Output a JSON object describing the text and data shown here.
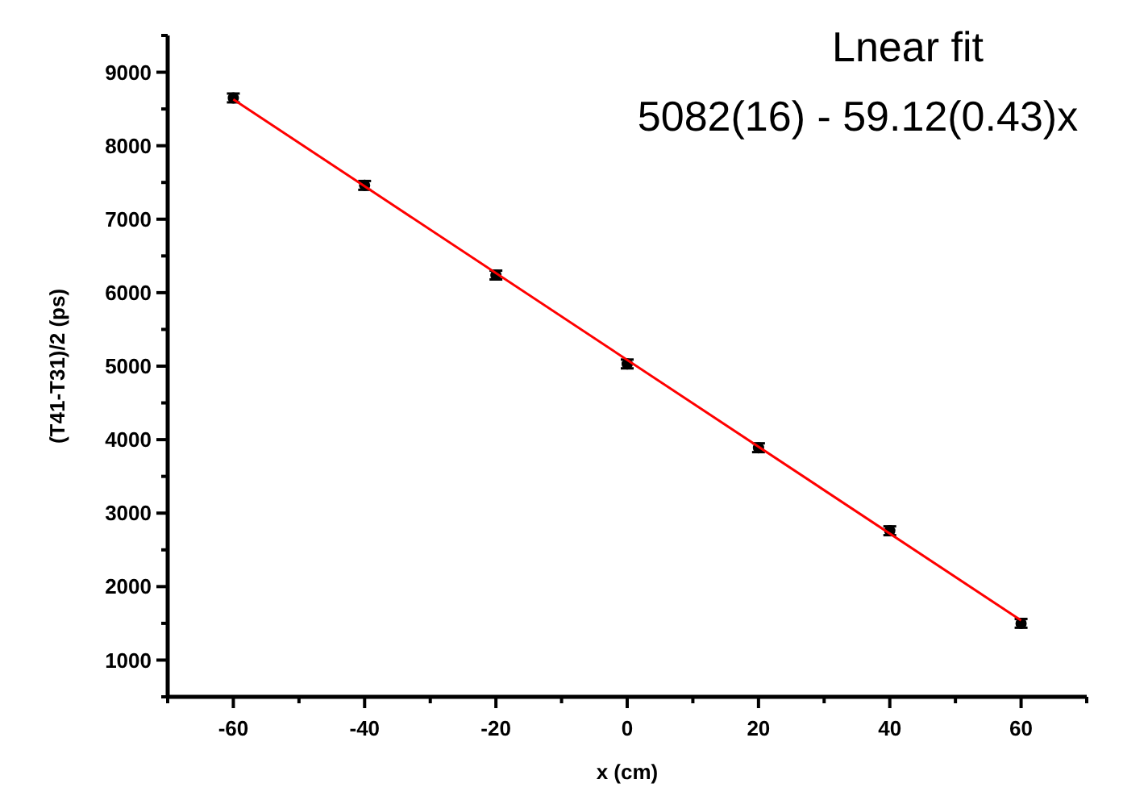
{
  "chart_data": {
    "type": "scatter",
    "xlabel": "x (cm)",
    "ylabel": "(T41-T31)/2 (ps)",
    "annotations": [
      "Lnear fit",
      "5082(16) - 59.12(0.43)x"
    ],
    "x": [
      -60,
      -40,
      -20,
      0,
      20,
      40,
      60
    ],
    "series": [
      {
        "color": "#000000",
        "marker": "circle",
        "values": [
          8650,
          7460,
          6240,
          5030,
          3890,
          2760,
          1500
        ],
        "errors": [
          60,
          60,
          60,
          60,
          60,
          60,
          60
        ]
      },
      {
        "type": "line",
        "color": "#ff0000",
        "x": [
          -60,
          60
        ],
        "values": [
          8630,
          1540
        ]
      }
    ],
    "xlim": [
      -70,
      70
    ],
    "xticks": [
      {
        "value": -70,
        "label": null
      },
      -60,
      {
        "value": -50,
        "label": null
      },
      -40,
      {
        "value": -30,
        "label": null
      },
      -20,
      {
        "value": -10,
        "label": null
      },
      0,
      {
        "value": 10,
        "label": null
      },
      20,
      {
        "value": 30,
        "label": null
      },
      40,
      {
        "value": 50,
        "label": null
      },
      60,
      {
        "value": 70,
        "label": null
      }
    ],
    "ylim": [
      500,
      9500
    ],
    "yticks": [
      {
        "value": 500,
        "label": null
      },
      1000,
      {
        "value": 1500,
        "label": null
      },
      2000,
      {
        "value": 2500,
        "label": null
      },
      3000,
      {
        "value": 3500,
        "label": null
      },
      4000,
      {
        "value": 4500,
        "label": null
      },
      5000,
      {
        "value": 5500,
        "label": null
      },
      6000,
      {
        "value": 6500,
        "label": null
      },
      7000,
      {
        "value": 7500,
        "label": null
      },
      8000,
      {
        "value": 8500,
        "label": null
      },
      9000,
      {
        "value": 9500,
        "label": null
      }
    ],
    "grid": false
  }
}
